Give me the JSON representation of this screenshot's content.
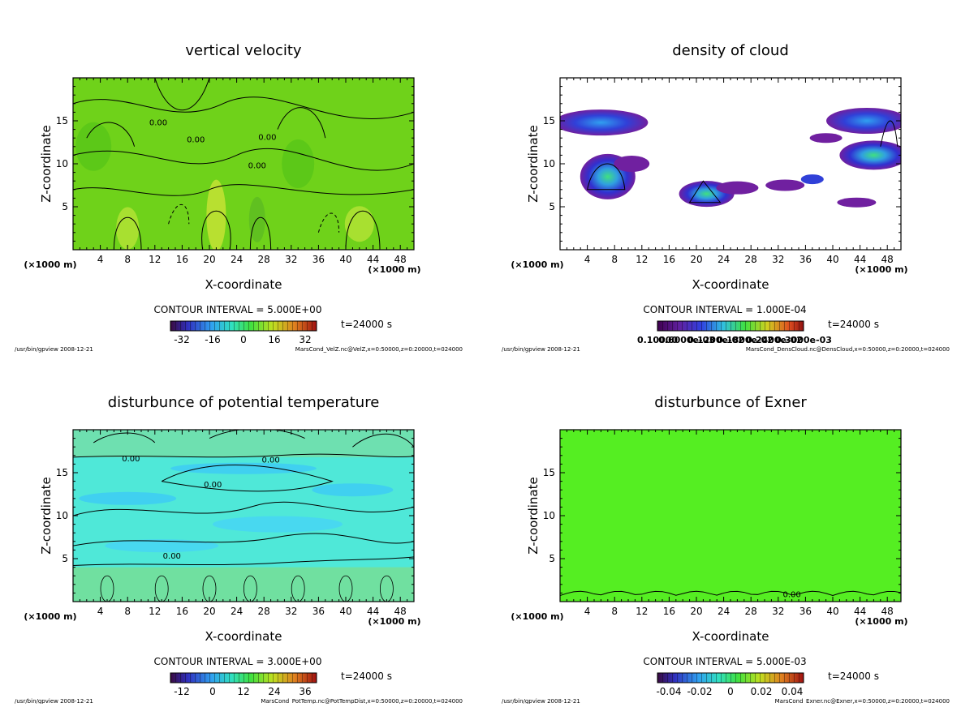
{
  "chart_data": [
    {
      "type": "heatmap",
      "title": "vertical velocity",
      "xlabel": "X-coordinate",
      "ylabel": "Z-coordinate",
      "x_unit_left": "(×1000 m)",
      "x_unit_right": "(×1000 m)",
      "x_ticks": [
        "4",
        "8",
        "12",
        "16",
        "20",
        "24",
        "28",
        "32",
        "36",
        "40",
        "44",
        "48"
      ],
      "y_ticks": [
        "5",
        "10",
        "15"
      ],
      "xlim": [
        0,
        50
      ],
      "ylim": [
        0,
        20
      ],
      "contour_interval": "CONTOUR INTERVAL = 5.000E+00",
      "time": "t=24000 s",
      "colorbar_labels": [
        "-32",
        "-16",
        "0",
        "16",
        "32"
      ],
      "contour_labels": [
        "0.00",
        "0.00",
        "0.00",
        "0.00"
      ],
      "footer_left": "/usr/bin/gpview   2008-12-21",
      "footer_right": "MarsCond_VelZ.nc@VelZ,x=0:50000,z=0:20000,t=024000",
      "base_color": "#6fd21a"
    },
    {
      "type": "heatmap",
      "title": "density of cloud",
      "xlabel": "X-coordinate",
      "ylabel": "Z-coordinate",
      "x_unit_left": "(×1000 m)",
      "x_unit_right": "(×1000 m)",
      "x_ticks": [
        "4",
        "8",
        "12",
        "16",
        "20",
        "24",
        "28",
        "32",
        "36",
        "40",
        "44",
        "48"
      ],
      "y_ticks": [
        "5",
        "10",
        "15"
      ],
      "xlim": [
        0,
        50
      ],
      "ylim": [
        0,
        20
      ],
      "contour_interval": "CONTOUR INTERVAL = 1.000E-04",
      "time": "t=24000 s",
      "colorbar_labels": [
        "0.10000",
        "0.6000e-03",
        "0.1200e-02",
        "0.1800e-02",
        "0.2400e-02",
        "0.3000e-03"
      ],
      "contour_labels": [],
      "footer_left": "/usr/bin/gpview   2008-12-21",
      "footer_right": "MarsCond_DensCloud.nc@DensCloud,x=0:50000,z=0:20000,t=024000",
      "base_color": "#ffffff"
    },
    {
      "type": "heatmap",
      "title": "disturbunce of potential temperature",
      "xlabel": "X-coordinate",
      "ylabel": "Z-coordinate",
      "x_unit_left": "(×1000 m)",
      "x_unit_right": "(×1000 m)",
      "x_ticks": [
        "4",
        "8",
        "12",
        "16",
        "20",
        "24",
        "28",
        "32",
        "36",
        "40",
        "44",
        "48"
      ],
      "y_ticks": [
        "5",
        "10",
        "15"
      ],
      "xlim": [
        0,
        50
      ],
      "ylim": [
        0,
        20
      ],
      "contour_interval": "CONTOUR INTERVAL = 3.000E+00",
      "time": "t=24000 s",
      "colorbar_labels": [
        "-12",
        "0",
        "12",
        "24",
        "36"
      ],
      "contour_labels": [
        "0.00",
        "0.00",
        "0.00",
        "0.00"
      ],
      "footer_left": "/usr/bin/gpview   2008-12-21",
      "footer_right": "MarsCond_PotTemp.nc@PotTempDist,x=0:50000,z=0:20000,t=024000",
      "base_color": "#4fe8d8"
    },
    {
      "type": "heatmap",
      "title": "disturbunce of Exner",
      "xlabel": "X-coordinate",
      "ylabel": "Z-coordinate",
      "x_unit_left": "(×1000 m)",
      "x_unit_right": "(×1000 m)",
      "x_ticks": [
        "4",
        "8",
        "12",
        "16",
        "20",
        "24",
        "28",
        "32",
        "36",
        "40",
        "44",
        "48"
      ],
      "y_ticks": [
        "5",
        "10",
        "15"
      ],
      "xlim": [
        0,
        50
      ],
      "ylim": [
        0,
        20
      ],
      "contour_interval": "CONTOUR INTERVAL = 5.000E-03",
      "time": "t=24000 s",
      "colorbar_labels": [
        "-0.04",
        "-0.02",
        "0",
        "0.02",
        "0.04"
      ],
      "contour_labels": [
        "0.00"
      ],
      "footer_left": "/usr/bin/gpview   2008-12-21",
      "footer_right": "MarsCond_Exner.nc@Exner,x=0:50000,z=0:20000,t=024000",
      "base_color": "#55ee22"
    }
  ]
}
